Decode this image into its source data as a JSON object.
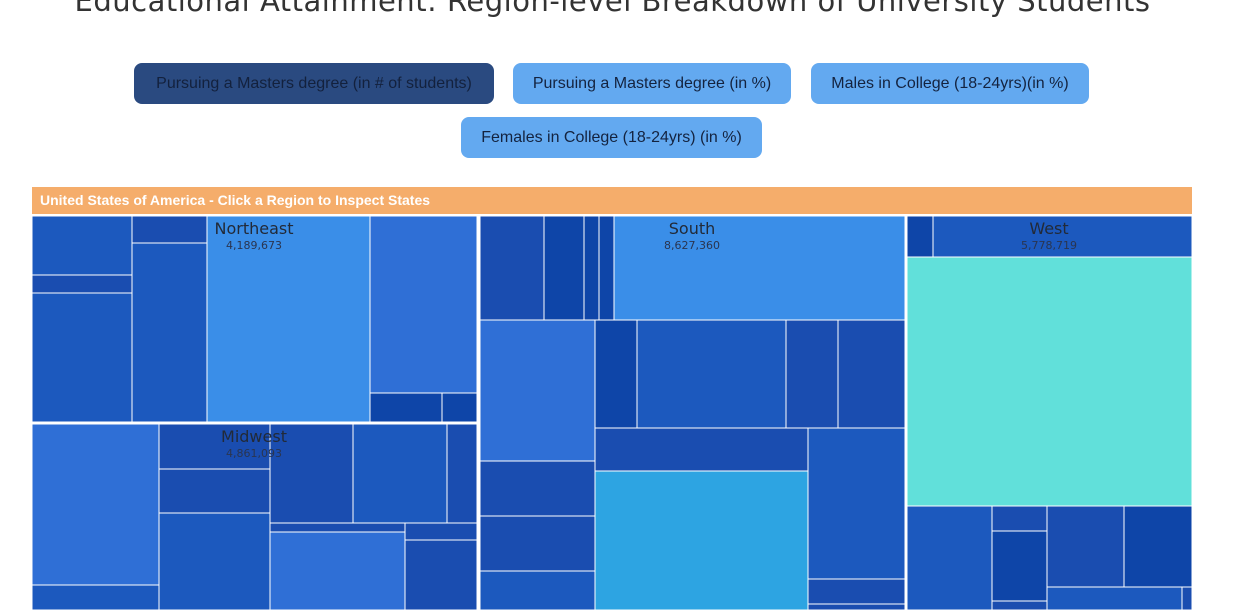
{
  "page": {
    "title": "Educational Attainment: Region-level Breakdown of University Students"
  },
  "buttons": [
    {
      "label": "Pursuing a Masters degree (in # of students)",
      "active": true
    },
    {
      "label": "Pursuing a Masters degree (in %)",
      "active": false
    },
    {
      "label": "Males in College (18-24yrs)(in %)",
      "active": false
    },
    {
      "label": "Females in College (18-24yrs) (in %)",
      "active": false
    }
  ],
  "banner": {
    "text": "United States of America - Click a Region to Inspect States"
  },
  "colors": {
    "banner": "#f5ad6b",
    "active_button": "#2a4a80",
    "inactive_button": "#63a9f0",
    "tile_palette": [
      "#1c59be",
      "#1a4db0",
      "#2f6fd6",
      "#3a8ee8",
      "#2da4e2",
      "#61e0da",
      "#0e45a8"
    ]
  },
  "chart_data": {
    "type": "treemap",
    "title": "United States of America - Click a Region to Inspect States",
    "metric": "Pursuing a Masters degree (in # of students)",
    "regions": [
      {
        "name": "Northeast",
        "value_label": "4,189,673"
      },
      {
        "name": "South",
        "value_label": "8,627,360"
      },
      {
        "name": "West",
        "value_label": "5,778,719"
      },
      {
        "name": "Midwest",
        "value_label": "4,861,093"
      }
    ]
  }
}
